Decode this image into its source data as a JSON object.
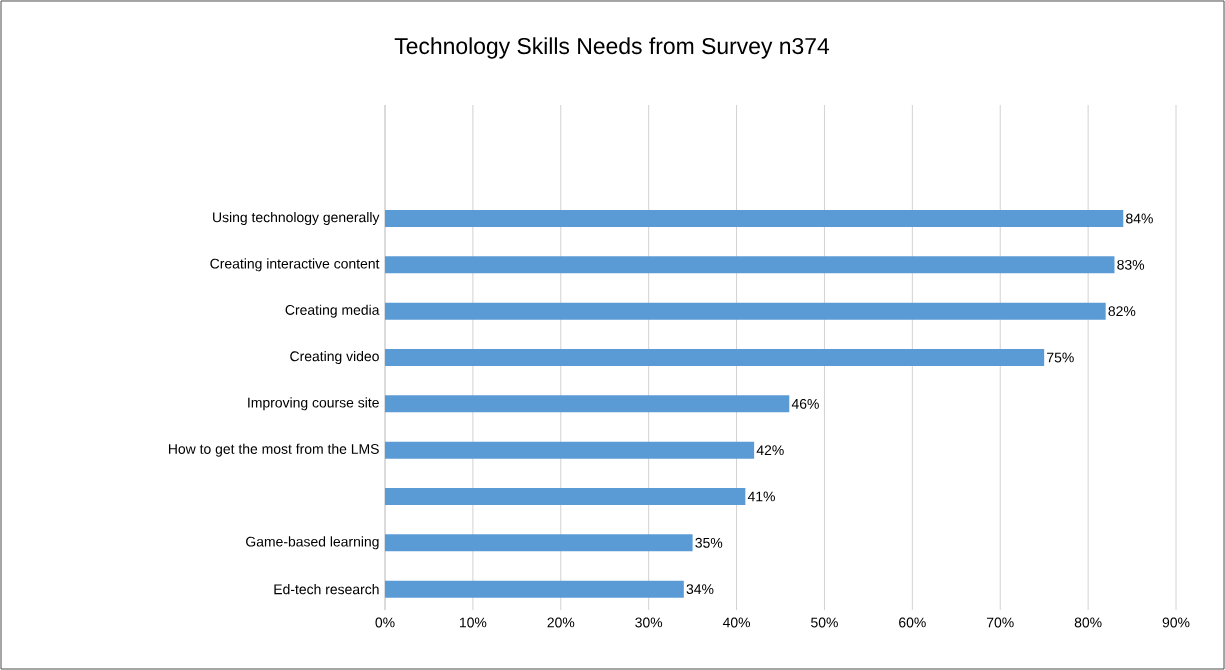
{
  "chart_data": {
    "type": "bar",
    "orientation": "horizontal",
    "title": "Technology Skills Needs from Survey n374",
    "categories": [
      "Using technology generally",
      "Creating interactive content",
      "Creating media",
      "Creating video",
      "Improving course site",
      "How to get the most from the LMS",
      null,
      "Game-based learning",
      "Ed-tech research"
    ],
    "values": [
      84,
      83,
      82,
      75,
      46,
      42,
      41,
      35,
      34
    ],
    "value_labels": [
      "84%",
      "83%",
      "82%",
      "75%",
      "46%",
      "42%",
      "41%",
      "35%",
      "34%"
    ],
    "color": "#5b9bd5",
    "xlim": [
      0,
      90
    ],
    "xticks": [
      {
        "value": 0,
        "label": "0%"
      },
      {
        "value": 10,
        "label": "10%"
      },
      {
        "value": 20,
        "label": "20%"
      },
      {
        "value": 30,
        "label": "30%"
      },
      {
        "value": 40,
        "label": "40%"
      },
      {
        "value": 50,
        "label": "50%"
      },
      {
        "value": 60,
        "label": "60%"
      },
      {
        "value": 70,
        "label": "70%"
      },
      {
        "value": 80,
        "label": "80%"
      },
      {
        "value": 90,
        "label": "90%"
      }
    ],
    "grid": "x"
  }
}
